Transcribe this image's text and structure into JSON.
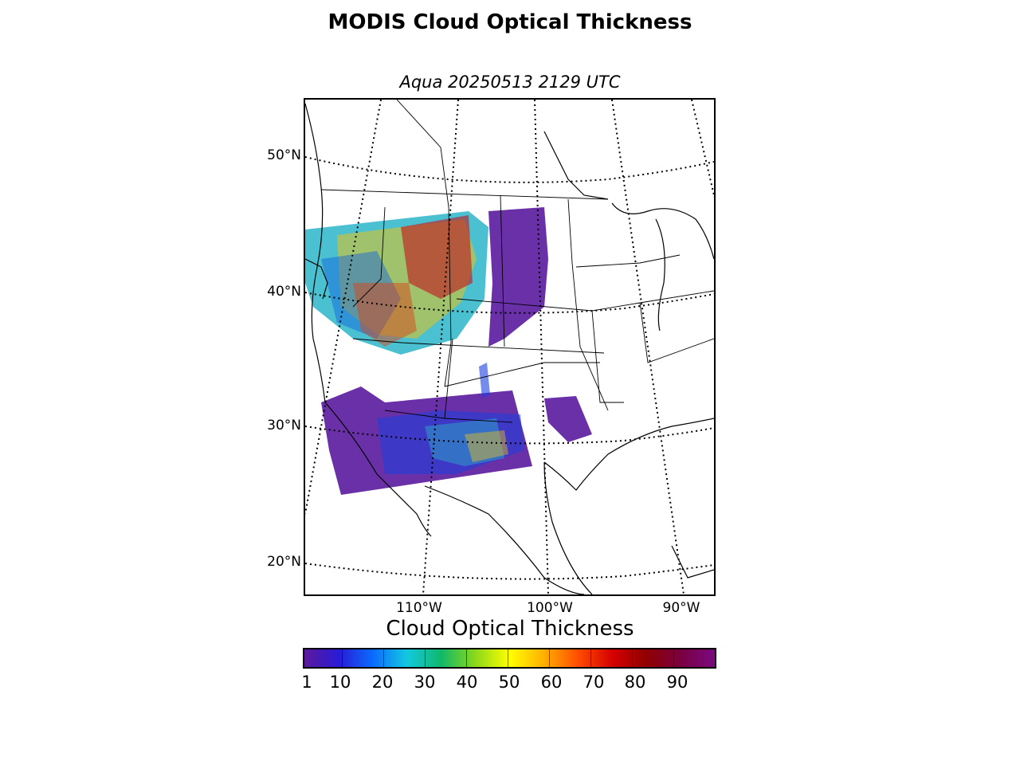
{
  "title": "MODIS Cloud Optical Thickness",
  "subtitle": "Aqua 20250513 2129 UTC",
  "map": {
    "lat_labels": [
      "50°N",
      "40°N",
      "30°N",
      "20°N"
    ],
    "lon_labels": [
      "110°W",
      "100°W",
      "90°W"
    ]
  },
  "colorbar": {
    "label": "Cloud Optical Thickness",
    "ticks": [
      "1",
      "10",
      "20",
      "30",
      "40",
      "50",
      "60",
      "70",
      "80",
      "90"
    ],
    "colors": [
      "#5b1a9c",
      "#2a1bd6",
      "#0a6bff",
      "#12c9e0",
      "#10b86a",
      "#8bd81a",
      "#ffff00",
      "#ffb000",
      "#ff4d00",
      "#d60000",
      "#900000",
      "#7a0040",
      "#7a0a80"
    ]
  }
}
